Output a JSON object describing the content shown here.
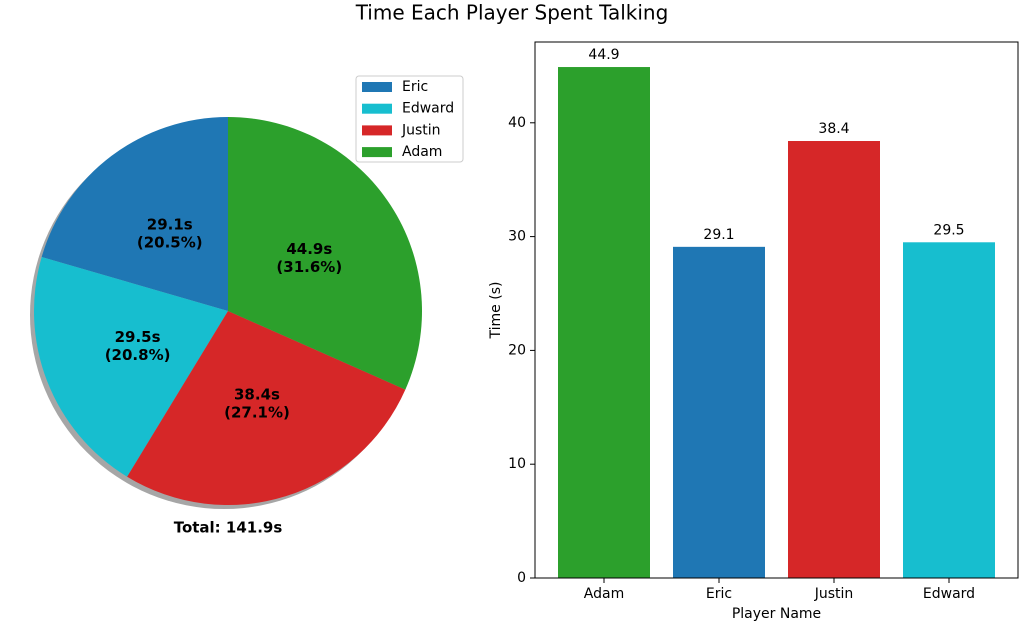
{
  "title": "Time Each Player Spent Talking",
  "chart_data": [
    {
      "type": "pie",
      "categories": [
        "Eric",
        "Edward",
        "Justin",
        "Adam"
      ],
      "values": [
        29.1,
        29.5,
        38.4,
        44.9
      ],
      "value_labels": [
        "29.1s\n(20.5%)",
        "29.5s\n(20.8%)",
        "38.4s\n(27.1%)",
        "44.9s\n(31.6%)"
      ],
      "colors": [
        "#1f77b4",
        "#17becf",
        "#d62728",
        "#2ca02c"
      ],
      "annotation": "Total: 141.9s",
      "legend": "upper right",
      "shadow": true
    },
    {
      "type": "bar",
      "categories": [
        "Adam",
        "Eric",
        "Justin",
        "Edward"
      ],
      "values": [
        44.9,
        29.1,
        38.4,
        29.5
      ],
      "colors": [
        "#2ca02c",
        "#1f77b4",
        "#d62728",
        "#17becf"
      ],
      "xlabel": "Player Name",
      "ylabel": "Time (s)",
      "ylim": [
        0,
        47.1
      ],
      "yticks": [
        0,
        10,
        20,
        30,
        40
      ]
    }
  ]
}
